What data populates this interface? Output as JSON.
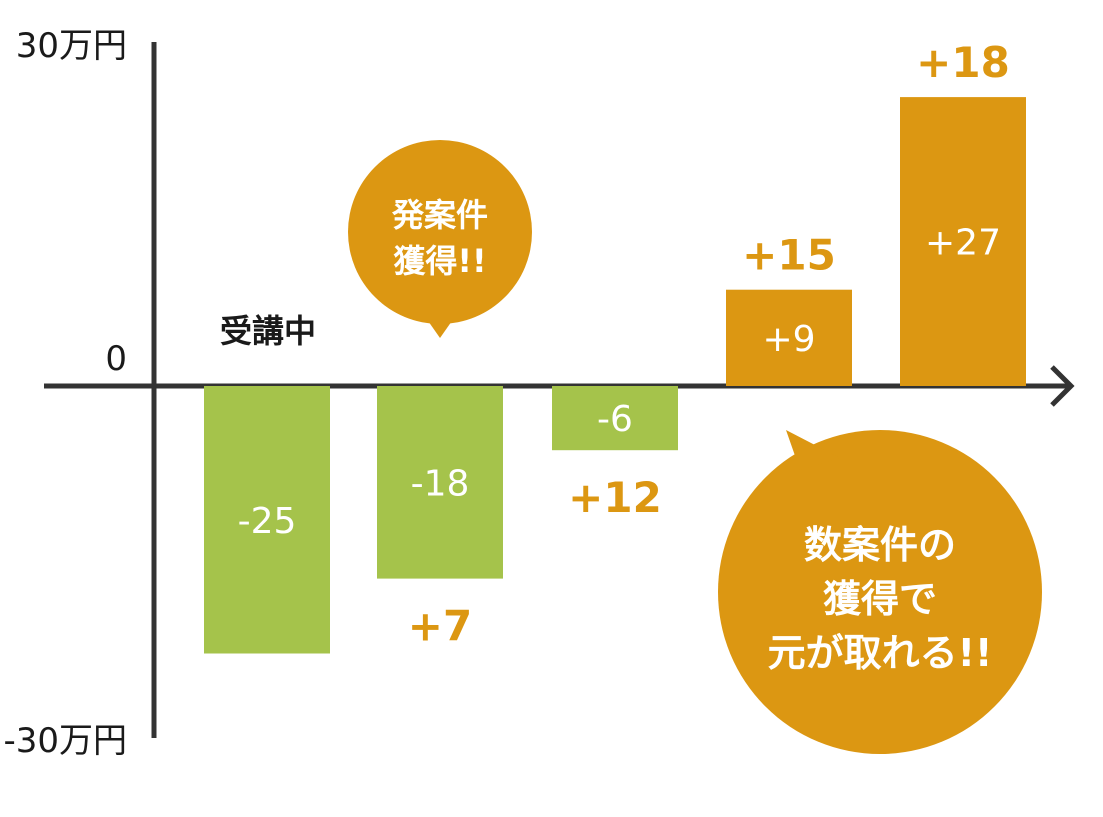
{
  "chart_data": {
    "type": "bar",
    "y_unit_label": "万円",
    "y_ticks": {
      "top": "30万円",
      "zero": "0",
      "bottom": "-30万円"
    },
    "ylim": [
      -30,
      30
    ],
    "grid": false,
    "bars": [
      {
        "value": -25,
        "label": "-25",
        "delta": "",
        "color": "#a5c34b"
      },
      {
        "value": -18,
        "label": "-18",
        "delta": "+7",
        "color": "#a5c34b"
      },
      {
        "value": -6,
        "label": "-6",
        "delta": "+12",
        "color": "#a5c34b"
      },
      {
        "value": 9,
        "label": "+9",
        "delta": "+15",
        "color": "#dc9712"
      },
      {
        "value": 27,
        "label": "+27",
        "delta": "+18",
        "color": "#dc9712"
      }
    ],
    "annotations": {
      "phase_label": "受講中",
      "bubble_small": [
        "発案件",
        "獲得!!"
      ],
      "bubble_large": [
        "数案件の",
        "獲得で",
        "元が取れる!!"
      ]
    }
  },
  "colors": {
    "negative_bar": "#a5c34b",
    "positive_bar": "#dc9712",
    "accent": "#dc9712",
    "axis": "#333333"
  }
}
